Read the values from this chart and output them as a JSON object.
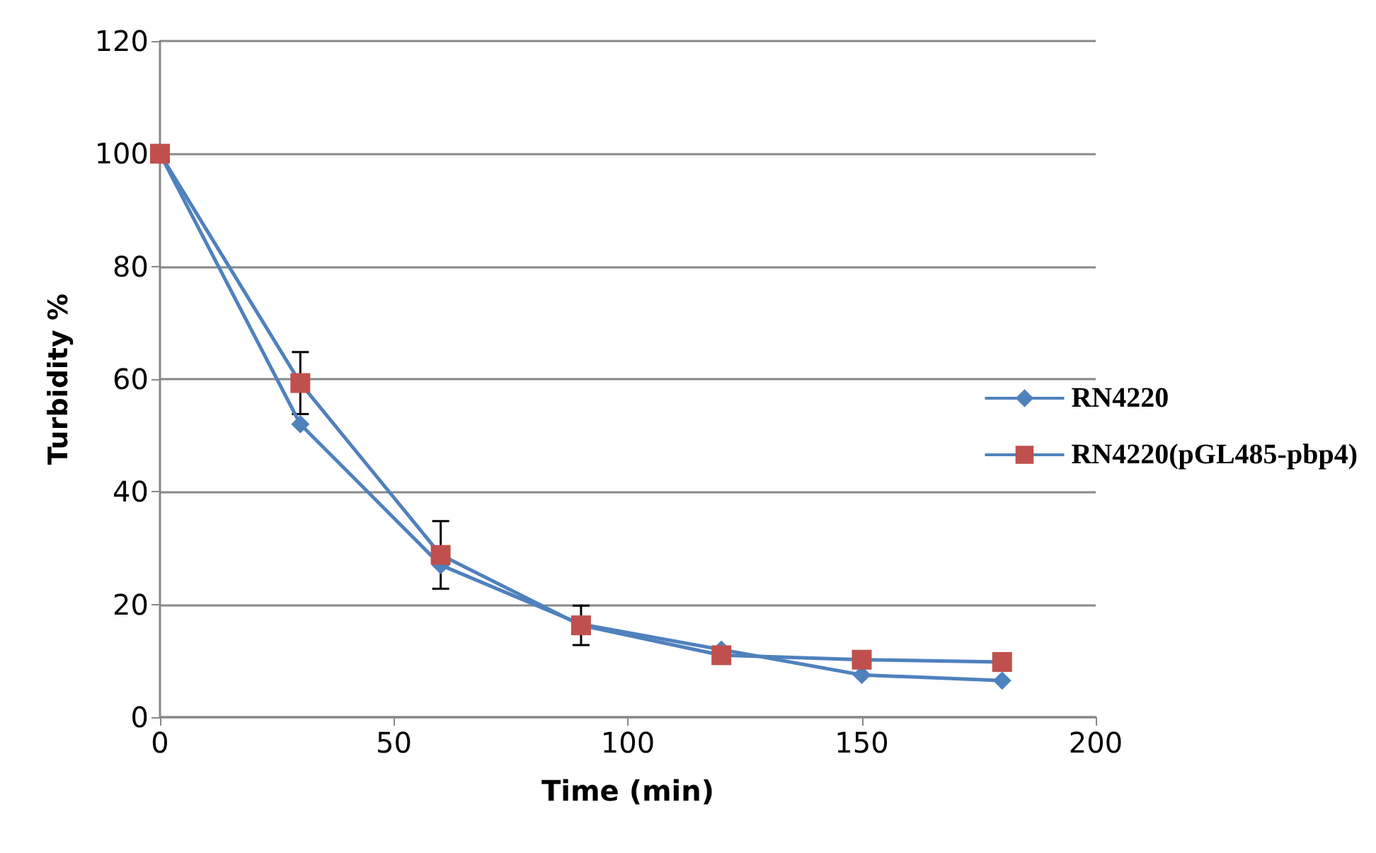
{
  "chart_data": {
    "type": "line",
    "xlabel": "Time (min)",
    "ylabel": "Turbidity %",
    "x": [
      0,
      30,
      60,
      90,
      120,
      150,
      180
    ],
    "series": [
      {
        "name": "RN4220",
        "color": "#4f81bd",
        "marker": "diamond",
        "values": [
          100,
          52,
          27,
          16.5,
          12,
          7.5,
          6.5
        ]
      },
      {
        "name": "RN4220(pGL485-pbp4)",
        "color": "#c0504d",
        "marker": "square",
        "values": [
          100,
          59.3,
          28.8,
          16.3,
          11,
          10.2,
          9.8
        ],
        "errors": [
          null,
          5.5,
          6,
          3.5,
          null,
          null,
          null
        ]
      }
    ],
    "xlim": [
      0,
      200
    ],
    "xticks": [
      0,
      50,
      100,
      150,
      200
    ],
    "ylim": [
      0,
      120
    ],
    "yticks": [
      0,
      20,
      40,
      60,
      80,
      100,
      120
    ],
    "grid": "y",
    "legend": "right"
  }
}
